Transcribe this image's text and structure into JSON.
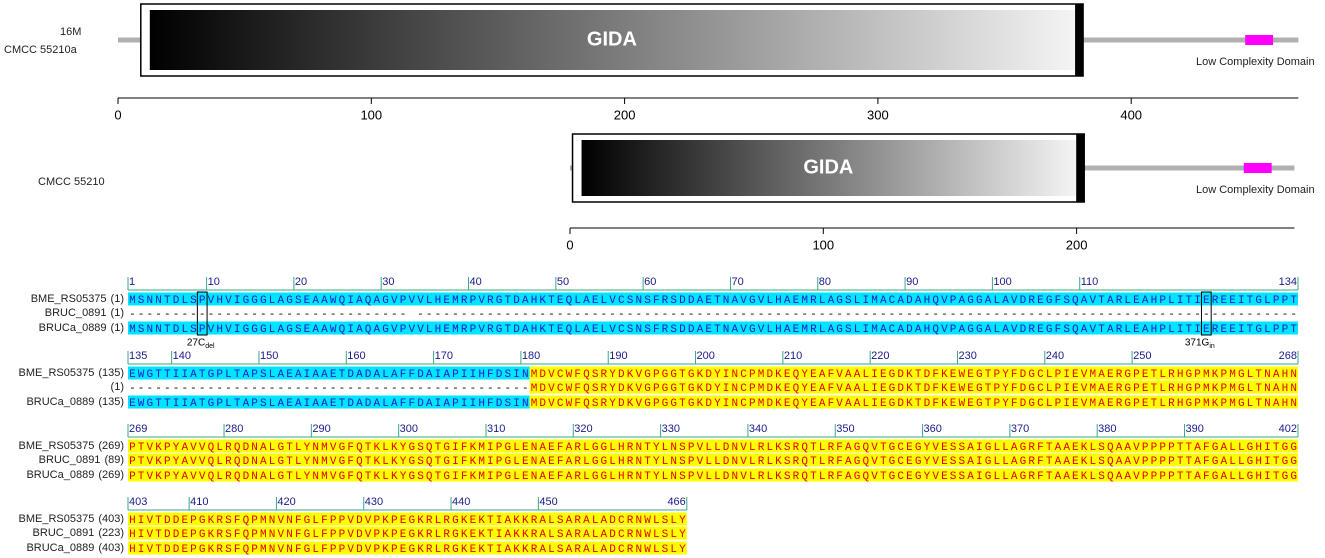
{
  "diagrams": [
    {
      "tag": "16M",
      "strain": "CMCC  55210a",
      "xlim": [
        0,
        466
      ],
      "xticks": [
        0,
        100,
        200,
        300,
        400
      ],
      "domain": {
        "label": "GIDA",
        "start": 9,
        "end": 381
      },
      "low_complexity": {
        "label": "Low Complexity Domain",
        "start": 445,
        "end": 456
      }
    },
    {
      "strain": "CMCC  55210",
      "xlim": [
        0,
        286
      ],
      "xticks": [
        0,
        100,
        200
      ],
      "domain": {
        "label": "GIDA",
        "start": 1,
        "end": 203
      },
      "low_complexity": {
        "label": "Low Complexity Domain",
        "start": 266,
        "end": 277
      }
    }
  ],
  "alignment": {
    "blocks": [
      {
        "start": 1,
        "ruler": [
          1,
          10,
          20,
          30,
          40,
          50,
          60,
          70,
          80,
          90,
          100,
          110,
          134
        ],
        "rows": [
          {
            "name": "BME_RS05375",
            "start": "(1)",
            "sequence": "MSNNTDLSPVHVIGGGLAGSEAAWQIAQAGVPVVLHEMRPVRGTDAHKTEQLAELVCSNSFRSDDAETNAVGVLHAEMRLAGSLIMACADAHQVPAGGALAVDREGFSQAVTARLEAHPLITIEREEITGLPPT"
          },
          {
            "name": "BRUC_0891",
            "start": "(1)",
            "sequence": "-------------------------------- -----------------------------------------------------------------------------------------------------"
          },
          {
            "name": "BRUCa_0889",
            "start": "(1)",
            "sequence": "MSNNTDLSPVHVIGGGLAGSEAAWQIAQAGVPVVLHEMRPVRGTDAHKTEQLAELVCSNSFRSDDAETNAVGVLHAEMRLAGSLIMACADAHQVPAGGALAVDREGFSQAVTARLEAHPLITIEREEITGLPPT"
          }
        ]
      },
      {
        "start": 135,
        "ruler": [
          135,
          140,
          150,
          160,
          170,
          180,
          190,
          200,
          210,
          220,
          230,
          240,
          250,
          268
        ],
        "rows": [
          {
            "name": "BME_RS05375",
            "start": "(135)",
            "sequence": "EWGTTIIATGPLTAPSLAEAIAAETDADALAFFDAIAPIIHFDSINMDVCWFQSRYDKVGPGGTGKDYINCPMDKEQYEAFVAALIEGDKTDFKEWEGTPYFDGCLPIEVMAERGPETLRHGPMKPMGLTNAHN"
          },
          {
            "name": "",
            "start": "(1)",
            "sequence": "----------------------------------------------MDVCWFQSRYDKVGPGGTGKDYINCPMDKEQYEAFVAALIEGDKTDFKEWEGTPYFDGCLPIEVMAERGPETLRHGPMKPMGLTNAHN"
          },
          {
            "name": "BRUCa_0889",
            "start": "(135)",
            "sequence": "EWGTTIIATGPLTAPSLAEAIAAETDADALAFFDAIAPIIHFDSINMDVCWFQSRYDKVGPGGTGKDYINCPMDKEQYEAFVAALIEGDKTDFKEWEGTPYFDGCLPIEVMAERGPETLRHGPMKPMGLTNAHN"
          }
        ]
      },
      {
        "start": 269,
        "ruler": [
          269,
          280,
          290,
          300,
          310,
          320,
          330,
          340,
          350,
          360,
          370,
          380,
          390,
          402
        ],
        "rows": [
          {
            "name": "BME_RS05375",
            "start": "(269)",
            "sequence": "PTVKPYAVVQLRQDNALGTLYNMVGFQTKLKYGSQTGIFKMIPGLENAEFARLGGLHRNTYLNSPVLLDNVLRLKSRQTLRFAGQVTGCEGYVESSAIGLLAGRFTAAEKLSQAAVPPPPTTAFGALLGHITGG"
          },
          {
            "name": "BRUC_0891",
            "start": "(89)",
            "sequence": "PTVKPYAVVQLRQDNALGTLYNMVGFQTKLKYGSQTGIFKMIPGLENAEFARLGGLHRNTYLNSPVLLDNVLRLKSRQTLRFAGQVTGCEGYVESSAIGLLAGRFTAAEKLSQAAVPPPPTTAFGALLGHITGG"
          },
          {
            "name": "BRUCa_0889",
            "start": "(269)",
            "sequence": "PTVKPYAVVQLRQDNALGTLYNMVGFQTKLKYGSQTGIFKMIPGLENAEFARLGGLHRNTYLNSPVLLDNVLRLKSRQTLRFAGQVTGCEGYVESSAIGLLAGRFTAAEKLSQAAVPPPPTTAFGALLGHITGG"
          }
        ]
      },
      {
        "start": 403,
        "ruler": [
          403,
          410,
          420,
          430,
          440,
          450,
          466
        ],
        "rows": [
          {
            "name": "BME_RS05375",
            "start": "(403)",
            "sequence": "HIVTDDEPGKRSFQPMNVNFGLFPPVDVPKPEGKRLRGKEKTIAKKRALSARALADCRNWLSLY"
          },
          {
            "name": "BRUC_0891",
            "start": "(223)",
            "sequence": "HIVTDDEPGKRSFQPMNVNFGLFPPVDVPKPEGKRLRGKEKTIAKKRALSARALADCRNWLSLY"
          },
          {
            "name": "BRUCa_0889",
            "start": "(403)",
            "sequence": "HIVTDDEPGKRSFQPMNVNFGLFPPVDVPKPEGKRLRGKEKTIAKKRALSARALADCRNWLSLY"
          }
        ]
      }
    ],
    "annotations": [
      {
        "text": "27C",
        "sub": "del",
        "position": 9
      },
      {
        "text": "371G",
        "sub": "in",
        "position": 124
      }
    ]
  }
}
